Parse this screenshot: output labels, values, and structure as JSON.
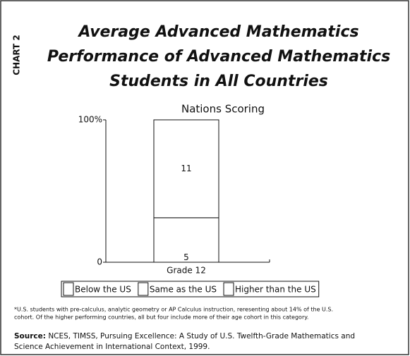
{
  "side_label": "CHART 2",
  "chart_data": {
    "type": "bar",
    "stacked": true,
    "title": [
      "Average Advanced Mathematics",
      "Performance of Advanced Mathematics",
      "Students in All Countries"
    ],
    "subtitle": "Nations Scoring",
    "categories": [
      "Grade 12"
    ],
    "series": [
      {
        "name": "Higher than the US",
        "color": "#ffffff",
        "values": [
          0
        ]
      },
      {
        "name": "Same as the US",
        "color": "#ffffff",
        "values": [
          5
        ]
      },
      {
        "name": "Below the US",
        "color": "#ffffff",
        "values": [
          11
        ]
      }
    ],
    "legend_order": [
      2,
      1,
      0
    ],
    "ylim": [
      0,
      16
    ],
    "yticks": [
      0,
      {
        "value": 16,
        "label": "100%"
      }
    ]
  },
  "footnote": [
    "*U.S. students with pre-calculus, analytic geometry or AP Calculus instruction, reresenting about 14% of the U.S.",
    "cohort. Of the higher performing countries, all but four include more of their age cohort in this category."
  ],
  "source_label": "Source:",
  "source": [
    " NCES, TIMSS, Pursuing Excellence: A Study of U.S. Twelfth-Grade Mathematics and",
    "Science Achievement in International Context, 1999."
  ]
}
